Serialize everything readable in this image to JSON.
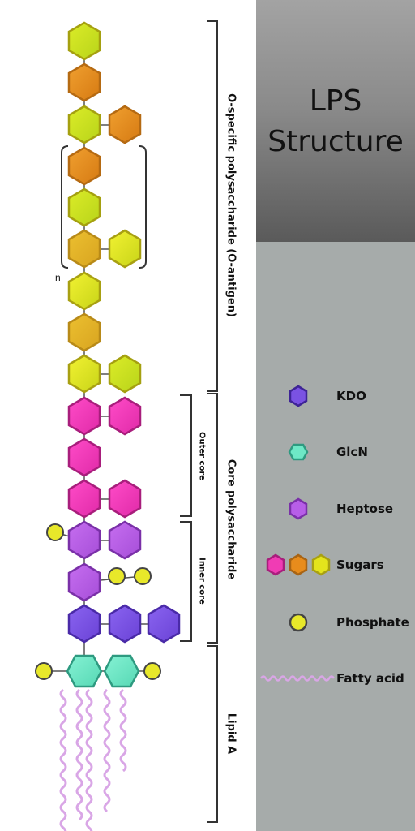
{
  "title": [
    "LPS",
    "Structure"
  ],
  "regions": {
    "o_antigen": "O-specific polysaccharide (O-antigen)",
    "core": "Core polysaccharide",
    "outer_core": "Outer core",
    "inner_core": "Inner core",
    "lipid_a": "Lipid A",
    "repeat_n": "n"
  },
  "legend": [
    {
      "label": "KDO",
      "icon": "kdo-hexagon-icon"
    },
    {
      "label": "GlcN",
      "icon": "glcn-hexagon-icon"
    },
    {
      "label": "Heptose",
      "icon": "heptose-hexagon-icon"
    },
    {
      "label": "Sugars",
      "icon": "sugar-hexagons-icon"
    },
    {
      "label": "Phosphate",
      "icon": "phosphate-circle-icon"
    },
    {
      "label": "Fatty acid",
      "icon": "fatty-acid-wave-icon"
    }
  ],
  "colors": {
    "kdo": "#7a52e3",
    "glcn": "#6ee8c6",
    "heptose": "#b75ee8",
    "sugar_magenta": "#f03cb4",
    "sugar_orange": "#e88c1c",
    "sugar_yellow": "#e4e41c",
    "phosphate": "#e8e82a",
    "fatty_acid": "#d9a6e6",
    "panel": "#a6abaa"
  }
}
